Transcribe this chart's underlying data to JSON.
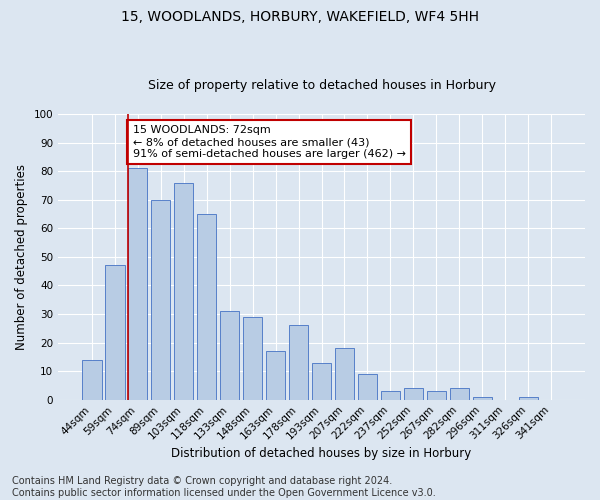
{
  "title": "15, WOODLANDS, HORBURY, WAKEFIELD, WF4 5HH",
  "subtitle": "Size of property relative to detached houses in Horbury",
  "xlabel": "Distribution of detached houses by size in Horbury",
  "ylabel": "Number of detached properties",
  "categories": [
    "44sqm",
    "59sqm",
    "74sqm",
    "89sqm",
    "103sqm",
    "118sqm",
    "133sqm",
    "148sqm",
    "163sqm",
    "178sqm",
    "193sqm",
    "207sqm",
    "222sqm",
    "237sqm",
    "252sqm",
    "267sqm",
    "282sqm",
    "296sqm",
    "311sqm",
    "326sqm",
    "341sqm"
  ],
  "values": [
    14,
    47,
    81,
    70,
    76,
    65,
    31,
    29,
    17,
    26,
    13,
    18,
    9,
    3,
    4,
    3,
    4,
    1,
    0,
    1,
    0
  ],
  "bar_color": "#b8cce4",
  "bar_edge_color": "#4472c4",
  "background_color": "#dce6f1",
  "plot_bg_color": "#dce6f1",
  "grid_color": "#ffffff",
  "vline_index": 2,
  "vline_color": "#c00000",
  "annotation_text": "15 WOODLANDS: 72sqm\n← 8% of detached houses are smaller (43)\n91% of semi-detached houses are larger (462) →",
  "annotation_box_color": "#ffffff",
  "annotation_box_edge_color": "#c00000",
  "ylim": [
    0,
    100
  ],
  "yticks": [
    0,
    10,
    20,
    30,
    40,
    50,
    60,
    70,
    80,
    90,
    100
  ],
  "footer": "Contains HM Land Registry data © Crown copyright and database right 2024.\nContains public sector information licensed under the Open Government Licence v3.0.",
  "title_fontsize": 10,
  "subtitle_fontsize": 9,
  "xlabel_fontsize": 8.5,
  "ylabel_fontsize": 8.5,
  "tick_fontsize": 7.5,
  "footer_fontsize": 7,
  "annotation_fontsize": 8
}
